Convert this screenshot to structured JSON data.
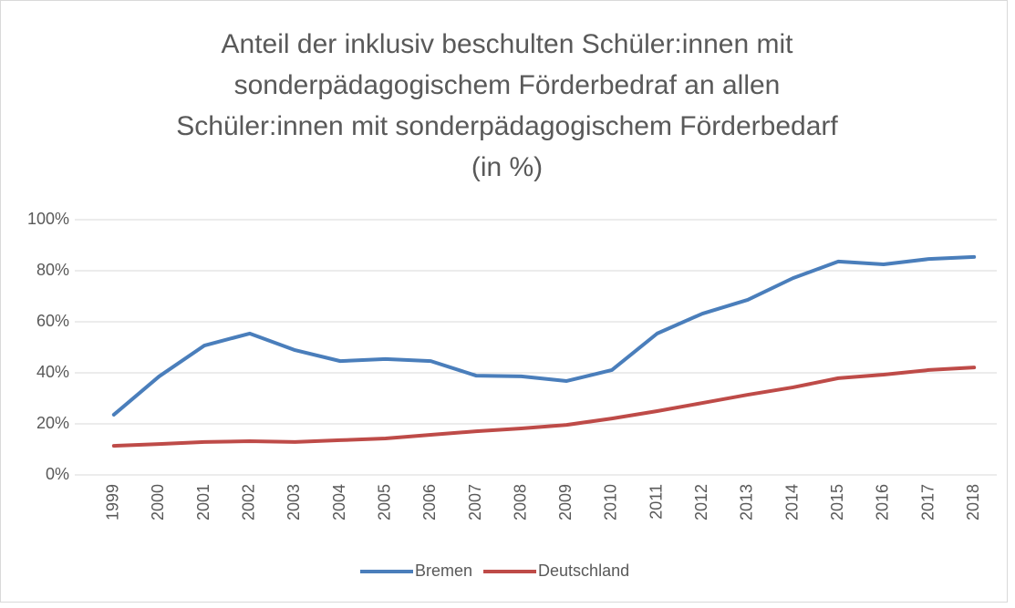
{
  "chart_data": {
    "type": "line",
    "title": [
      "Anteil der inklusiv beschulten Schüler:innen mit",
      "sonderpädagogischem Förderbedraf an allen",
      "Schüler:innen mit  sonderpädagogischem Förderbedarf",
      "(in %)"
    ],
    "categories": [
      "1999",
      "2000",
      "2001",
      "2002",
      "2003",
      "2004",
      "2005",
      "2006",
      "2007",
      "2008",
      "2009",
      "2010",
      "2011",
      "2012",
      "2013",
      "2014",
      "2015",
      "2016",
      "2017",
      "2018"
    ],
    "series": [
      {
        "name": "Bremen",
        "color": "#4a7ebb",
        "values": [
          23.6,
          38.6,
          50.7,
          55.4,
          48.9,
          44.6,
          45.4,
          44.6,
          38.9,
          38.6,
          36.8,
          41.1,
          55.4,
          63.2,
          68.6,
          77.1,
          83.6,
          82.5,
          84.6,
          85.4
        ]
      },
      {
        "name": "Deutschland",
        "color": "#be4b48",
        "values": [
          11.4,
          12.1,
          12.9,
          13.2,
          12.9,
          13.6,
          14.3,
          15.7,
          17.1,
          18.2,
          19.6,
          22.1,
          25,
          28.2,
          31.4,
          34.3,
          37.9,
          39.3,
          41.1,
          42.1
        ]
      }
    ],
    "ylim": [
      0,
      100
    ],
    "yticks": [
      {
        "value": 0,
        "label": "0%"
      },
      {
        "value": 20,
        "label": "20%"
      },
      {
        "value": 40,
        "label": "40%"
      },
      {
        "value": 60,
        "label": "60%"
      },
      {
        "value": 80,
        "label": "80%"
      },
      {
        "value": 100,
        "label": "100%"
      }
    ],
    "grid": true,
    "legend": "bottom"
  }
}
